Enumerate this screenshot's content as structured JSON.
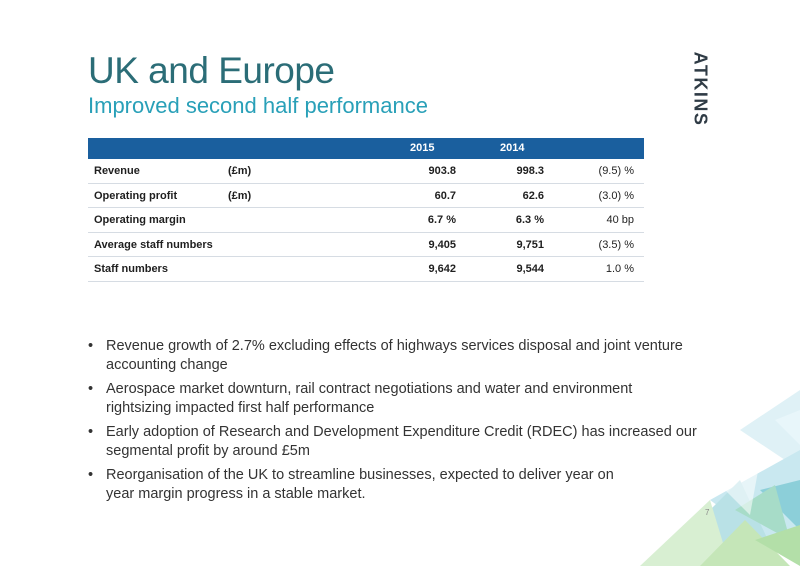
{
  "header": {
    "title": "UK and Europe",
    "subtitle": "Improved second half performance",
    "logo_text": "ATKINS"
  },
  "table": {
    "columns": [
      "2015",
      "2014"
    ],
    "rows": [
      {
        "label": "Revenue",
        "unit": "(£m)",
        "v2015": "903.8",
        "v2014": "998.3",
        "change": "(9.5) %"
      },
      {
        "label": "Operating profit",
        "unit": "(£m)",
        "v2015": "60.7",
        "v2014": "62.6",
        "change": "(3.0) %"
      },
      {
        "label": "Operating margin",
        "unit": "",
        "v2015": "6.7 %",
        "v2014": "6.3 %",
        "change": "40 bp"
      },
      {
        "label": "Average staff numbers",
        "unit": "",
        "v2015": "9,405",
        "v2014": "9,751",
        "change": "(3.5) %"
      },
      {
        "label": "Staff numbers",
        "unit": "",
        "v2015": "9,642",
        "v2014": "9,544",
        "change": "1.0  %"
      }
    ]
  },
  "bullets": [
    {
      "line1": "Revenue growth of 2.7% excluding effects of highways services disposal and joint venture",
      "line2": "accounting change"
    },
    {
      "line1": "Aerospace market downturn, rail contract negotiations and water and environment",
      "line2": "rightsizing impacted first half performance"
    },
    {
      "line1": "Early adoption of Research and Development Expenditure Credit (RDEC) has increased our",
      "line2": "segmental profit by around £5m"
    },
    {
      "line1": "Reorganisation of the UK to streamline businesses, expected to deliver year on",
      "line2": "year margin progress in a stable market."
    }
  ],
  "bullet_glyph": "•",
  "footer": {
    "page_number": "7"
  },
  "colors": {
    "title": "#2b6d77",
    "subtitle": "#29a0b8",
    "table_header": "#1a5f9e",
    "logo": "#2f3b45"
  }
}
